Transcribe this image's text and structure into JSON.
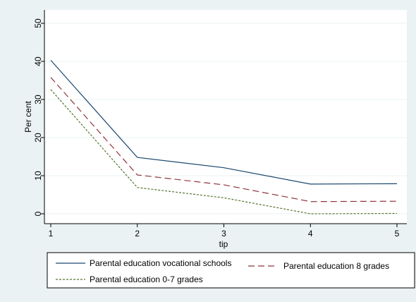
{
  "chart_data": {
    "type": "line",
    "title": "",
    "xlabel": "tip",
    "ylabel": "Per cent",
    "x": [
      1,
      2,
      3,
      4,
      5
    ],
    "xlim": [
      1,
      5
    ],
    "ylim": [
      0,
      50
    ],
    "x_ticks": [
      1,
      2,
      3,
      4,
      5
    ],
    "y_ticks": [
      0,
      10,
      20,
      30,
      40,
      50
    ],
    "grid": true,
    "legend_position": "bottom",
    "series": [
      {
        "name": "Parental education vocational schools",
        "values": [
          40.3,
          14.8,
          12.1,
          7.8,
          7.9
        ],
        "color": "#1a476f",
        "line_style": "solid"
      },
      {
        "name": "Parental education 8 grades",
        "values": [
          35.8,
          10.2,
          7.6,
          3.2,
          3.3
        ],
        "color": "#90353b",
        "line_style": "dashed"
      },
      {
        "name": "Parental education 0-7 grades",
        "values": [
          32.6,
          6.9,
          4.2,
          0.0,
          0.1
        ],
        "color": "#55752f",
        "line_style": "dotted"
      }
    ]
  }
}
